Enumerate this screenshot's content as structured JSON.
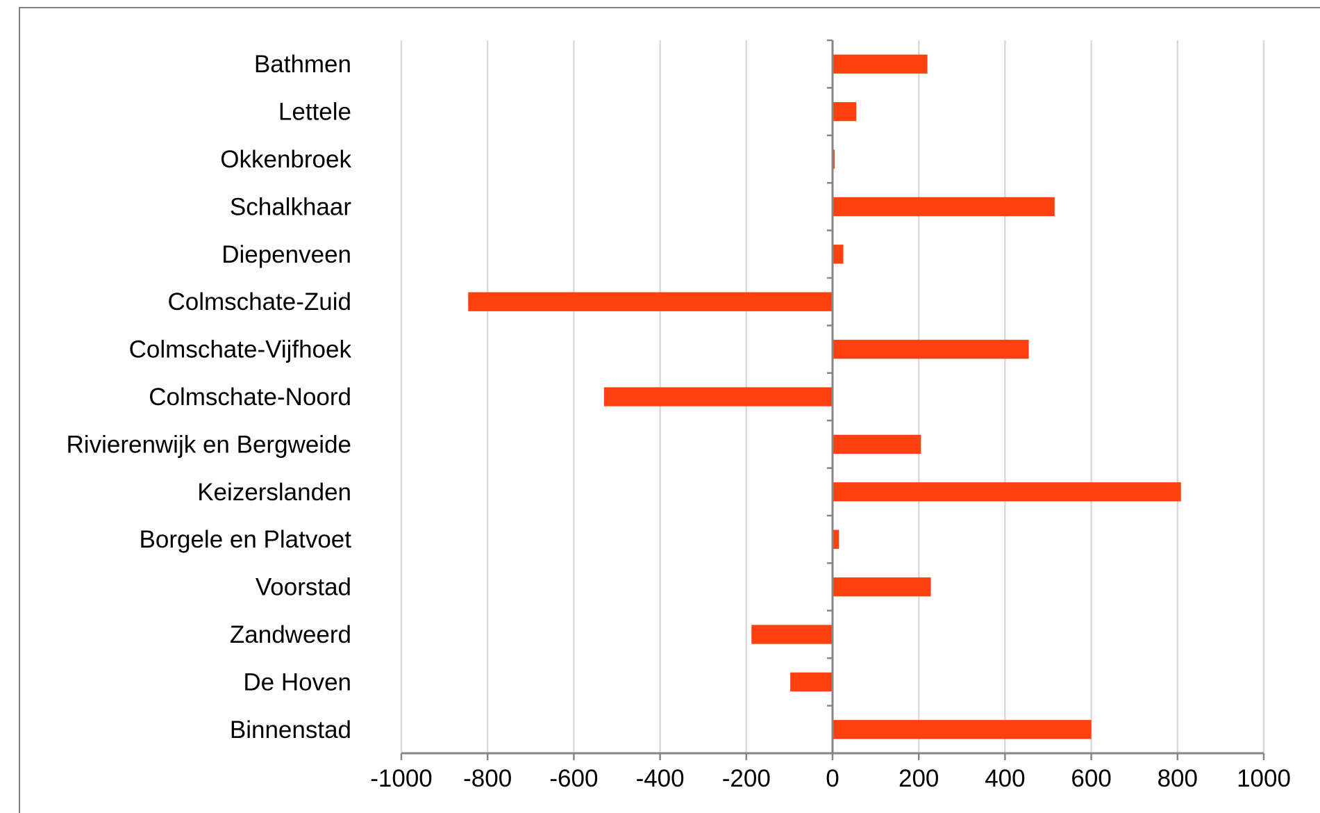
{
  "chart_data": {
    "type": "bar",
    "orientation": "horizontal",
    "title": "",
    "xlabel": "",
    "ylabel": "",
    "categories": [
      "Bathmen",
      "Lettele",
      "Okkenbroek",
      "Schalkhaar",
      "Diepenveen",
      "Colmschate-Zuid",
      "Colmschate-Vijfhoek",
      "Colmschate-Noord",
      "Rivierenwijk en Bergweide",
      "Keizerslanden",
      "Borgele en Platvoet",
      "Voorstad",
      "Zandweerd",
      "De Hoven",
      "Binnenstad"
    ],
    "values": [
      220,
      55,
      5,
      515,
      25,
      -845,
      455,
      -530,
      205,
      808,
      15,
      228,
      -188,
      -98,
      600
    ],
    "xlim": [
      -1000,
      1000
    ],
    "xticks": [
      "-1000",
      "-800",
      "-600",
      "-400",
      "-200",
      "0",
      "200",
      "400",
      "600",
      "800",
      "1000"
    ],
    "grid": "vertical",
    "legend": "none",
    "colors": {
      "bar": "#ff4110",
      "grid": "#d9d9d9",
      "axis": "#868686"
    }
  }
}
